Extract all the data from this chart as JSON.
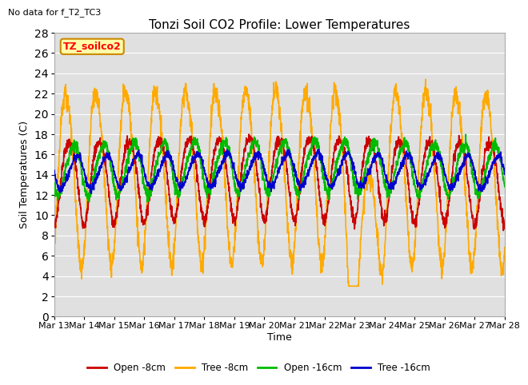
{
  "title": "Tonzi Soil CO2 Profile: Lower Temperatures",
  "annotation_top_left": "No data for f_T2_TC3",
  "ylabel": "Soil Temperatures (C)",
  "xlabel": "Time",
  "ylim": [
    0,
    28
  ],
  "bg_color": "#e0e0e0",
  "fig_bg": "#ffffff",
  "legend_box_label": "TZ_soilco2",
  "legend_box_facecolor": "#ffffaa",
  "legend_box_edgecolor": "#cc8800",
  "legend_entries": [
    {
      "label": "Open -8cm",
      "color": "#cc0000",
      "lw": 1.2
    },
    {
      "label": "Tree -8cm",
      "color": "#ffaa00",
      "lw": 1.2
    },
    {
      "label": "Open -16cm",
      "color": "#00bb00",
      "lw": 1.2
    },
    {
      "label": "Tree -16cm",
      "color": "#0000cc",
      "lw": 1.2
    }
  ],
  "title_fontsize": 11,
  "axis_label_fontsize": 9,
  "tick_fontsize": 8,
  "yticks": [
    0,
    2,
    4,
    6,
    8,
    10,
    12,
    14,
    16,
    18,
    20,
    22,
    24,
    26,
    28
  ],
  "x_tick_labels": [
    "Mar 13",
    "Mar 14",
    "Mar 15",
    "Mar 16",
    "Mar 17",
    "Mar 18",
    "Mar 19",
    "Mar 20",
    "Mar 21",
    "Mar 22",
    "Mar 23",
    "Mar 24",
    "Mar 25",
    "Mar 26",
    "Mar 27",
    "Mar 28"
  ]
}
